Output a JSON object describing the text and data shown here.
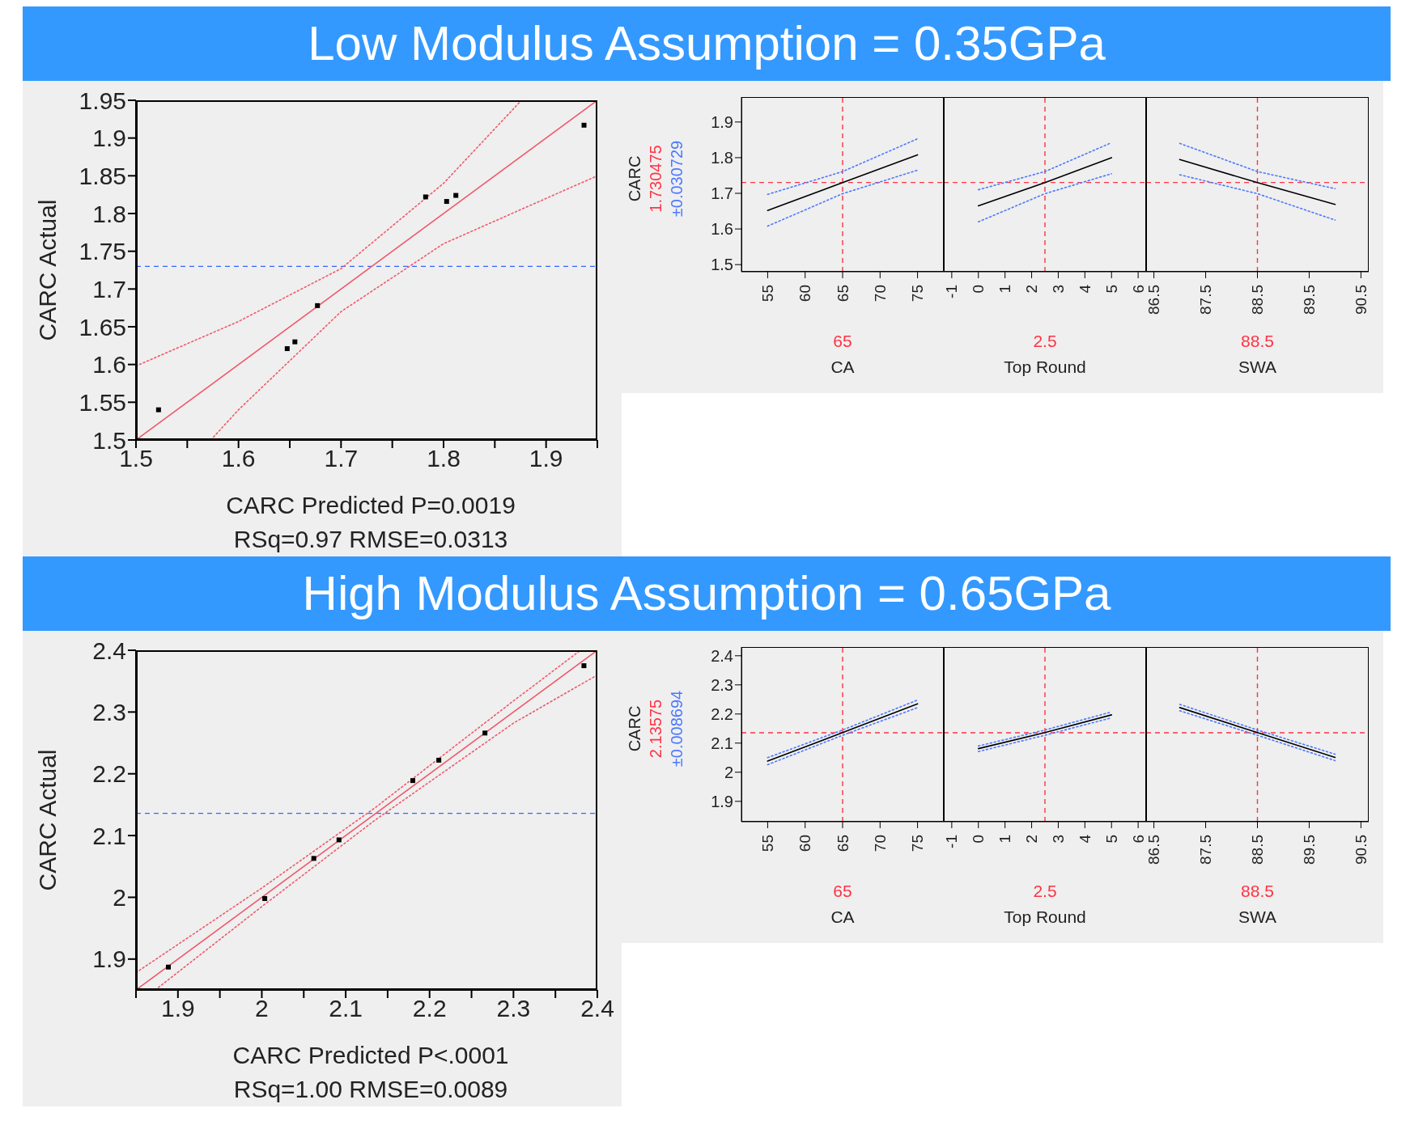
{
  "chart_data": [
    {
      "type": "scatter",
      "title": "Low Modulus Assumption = 0.35GPa",
      "xlabel": "CARC Predicted P=0.0019",
      "ylabel": "CARC Actual",
      "annotations": [
        "RSq=0.97 RMSE=0.0313"
      ],
      "xlim": [
        1.5,
        1.95
      ],
      "xticks": [
        1.5,
        {
          "value": 1.55,
          "label": null
        },
        1.6,
        {
          "value": 1.65,
          "label": null
        },
        1.7,
        {
          "value": 1.75,
          "label": null
        },
        1.8,
        {
          "value": 1.85,
          "label": null
        },
        1.9,
        {
          "value": 1.95,
          "label": null
        }
      ],
      "ylim": [
        1.5,
        1.95
      ],
      "yticks": [
        1.5,
        1.55,
        1.6,
        1.65,
        1.7,
        1.75,
        1.8,
        1.85,
        1.9,
        1.95
      ],
      "grid": false,
      "legend": false,
      "series": [
        {
          "type": "scatter",
          "marker": "square",
          "color": "#000000",
          "x": [
            1.522,
            1.6475,
            1.655,
            1.677,
            1.7825,
            1.803,
            1.812,
            1.937
          ],
          "values": [
            1.54,
            1.621,
            1.63,
            1.678,
            1.822,
            1.816,
            1.824,
            1.917
          ]
        },
        {
          "type": "line",
          "line_style": "solid",
          "color": "#f05a6a",
          "x": [
            1.5,
            1.95
          ],
          "values": [
            1.5,
            1.95
          ]
        },
        {
          "type": "line",
          "line_style": "dotted",
          "color": "#f05a6a",
          "x": [
            1.5,
            1.6,
            1.7,
            1.8,
            1.876
          ],
          "values": [
            1.598,
            1.657,
            1.727,
            1.84,
            1.95
          ]
        },
        {
          "type": "line",
          "line_style": "dotted",
          "color": "#f05a6a",
          "x": [
            1.573,
            1.6,
            1.7,
            1.8,
            1.9,
            1.95
          ],
          "values": [
            1.5,
            1.54,
            1.67,
            1.76,
            1.82,
            1.85
          ]
        }
      ],
      "ref_lines": [
        {
          "axis": "y",
          "value": 1.73,
          "color": "#3366ff",
          "line_style": "dashed"
        }
      ]
    },
    {
      "type": "line",
      "xlabel": "CA",
      "ylabel": "CARC",
      "annotations": [
        "1.730475",
        "±0.030729"
      ],
      "xlim": [
        51.5,
        78.5
      ],
      "xticks": [
        55,
        60,
        65,
        70,
        75
      ],
      "ylim": [
        1.48,
        1.97
      ],
      "yticks": [
        1.5,
        1.6,
        1.7,
        1.8,
        1.9
      ],
      "grid": false,
      "legend": false,
      "series": [
        {
          "line_style": "solid",
          "color": "#000000",
          "x": [
            55,
            65,
            75
          ],
          "values": [
            1.652,
            1.73,
            1.808
          ]
        },
        {
          "line_style": "dotted",
          "color": "#4d79ff",
          "x": [
            55,
            65,
            75
          ],
          "values": [
            1.697,
            1.761,
            1.853
          ]
        },
        {
          "line_style": "dotted",
          "color": "#4d79ff",
          "x": [
            55,
            65,
            75
          ],
          "values": [
            1.608,
            1.699,
            1.765
          ]
        }
      ],
      "ref_lines": [
        {
          "axis": "x",
          "value": 65,
          "label": "65",
          "color": "#ff3344",
          "line_style": "dashed"
        },
        {
          "axis": "y",
          "value": 1.730475,
          "color": "#ff3344",
          "line_style": "dashed"
        }
      ]
    },
    {
      "type": "line",
      "xlabel": "Top Round",
      "tick_labels": "x",
      "xlim": [
        -1.3,
        6.3
      ],
      "xticks": [
        -1,
        0,
        1,
        2,
        3,
        4,
        5,
        6
      ],
      "ylim": [
        1.48,
        1.97
      ],
      "grid": false,
      "legend": false,
      "series": [
        {
          "line_style": "solid",
          "color": "#000000",
          "x": [
            0,
            2.5,
            5
          ],
          "values": [
            1.665,
            1.73,
            1.8
          ]
        },
        {
          "line_style": "dotted",
          "color": "#4d79ff",
          "x": [
            0,
            2.5,
            5
          ],
          "values": [
            1.71,
            1.761,
            1.842
          ]
        },
        {
          "line_style": "dotted",
          "color": "#4d79ff",
          "x": [
            0,
            2.5,
            5
          ],
          "values": [
            1.62,
            1.699,
            1.755
          ]
        }
      ],
      "ref_lines": [
        {
          "axis": "x",
          "value": 2.5,
          "label": "2.5",
          "color": "#ff3344",
          "line_style": "dashed"
        },
        {
          "axis": "y",
          "value": 1.730475,
          "color": "#ff3344",
          "line_style": "dashed"
        }
      ]
    },
    {
      "type": "line",
      "xlabel": "SWA",
      "tick_labels": "x",
      "xlim": [
        86.35,
        90.65
      ],
      "xticks": [
        86.5,
        87.5,
        88.5,
        89.5,
        90.5
      ],
      "ylim": [
        1.48,
        1.97
      ],
      "grid": false,
      "legend": false,
      "series": [
        {
          "line_style": "solid",
          "color": "#000000",
          "x": [
            87,
            88.5,
            90
          ],
          "values": [
            1.795,
            1.73,
            1.669
          ]
        },
        {
          "line_style": "dotted",
          "color": "#4d79ff",
          "x": [
            87,
            88.5,
            90
          ],
          "values": [
            1.84,
            1.761,
            1.713
          ]
        },
        {
          "line_style": "dotted",
          "color": "#4d79ff",
          "x": [
            87,
            88.5,
            90
          ],
          "values": [
            1.752,
            1.699,
            1.625
          ]
        }
      ],
      "ref_lines": [
        {
          "axis": "x",
          "value": 88.5,
          "label": "88.5",
          "color": "#ff3344",
          "line_style": "dashed"
        },
        {
          "axis": "y",
          "value": 1.730475,
          "color": "#ff3344",
          "line_style": "dashed"
        }
      ]
    },
    {
      "type": "scatter",
      "title": "High Modulus Assumption = 0.65GPa",
      "xlabel": "CARC Predicted P<.0001",
      "ylabel": "CARC Actual",
      "annotations": [
        "RSq=1.00 RMSE=0.0089"
      ],
      "xlim": [
        1.85,
        2.4
      ],
      "xticks": [
        {
          "value": 1.85,
          "label": null
        },
        1.9,
        {
          "value": 1.95,
          "label": null
        },
        2,
        {
          "value": 2.05,
          "label": null
        },
        2.1,
        {
          "value": 2.15,
          "label": null
        },
        2.2,
        {
          "value": 2.25,
          "label": null
        },
        2.3,
        {
          "value": 2.35,
          "label": null
        },
        2.4
      ],
      "ylim": [
        1.85,
        2.4
      ],
      "yticks": [
        1.9,
        2,
        2.1,
        2.2,
        2.3,
        2.4
      ],
      "grid": false,
      "legend": false,
      "series": [
        {
          "type": "scatter",
          "marker": "square",
          "color": "#000000",
          "x": [
            1.8886,
            2.0035,
            2.062,
            2.092,
            2.18,
            2.211,
            2.266,
            2.384
          ],
          "values": [
            1.887,
            1.998,
            2.063,
            2.093,
            2.189,
            2.222,
            2.266,
            2.375
          ]
        },
        {
          "type": "line",
          "line_style": "solid",
          "color": "#f05a6a",
          "x": [
            1.85,
            2.4
          ],
          "values": [
            1.85,
            2.4
          ]
        },
        {
          "type": "line",
          "line_style": "dotted",
          "color": "#f05a6a",
          "x": [
            1.85,
            2.0,
            2.135,
            2.3,
            2.38
          ],
          "values": [
            1.878,
            2.015,
            2.145,
            2.318,
            2.4
          ]
        },
        {
          "type": "line",
          "line_style": "dotted",
          "color": "#f05a6a",
          "x": [
            1.873,
            2.0,
            2.135,
            2.3,
            2.4
          ],
          "values": [
            1.85,
            1.985,
            2.125,
            2.282,
            2.36
          ]
        }
      ],
      "ref_lines": [
        {
          "axis": "y",
          "value": 2.136,
          "color": "#3366ff",
          "line_style": "dashed"
        }
      ]
    },
    {
      "type": "line",
      "xlabel": "CA",
      "ylabel": "CARC",
      "annotations": [
        "2.13575",
        "±0.008694"
      ],
      "xlim": [
        51.5,
        78.5
      ],
      "xticks": [
        55,
        60,
        65,
        70,
        75
      ],
      "ylim": [
        1.83,
        2.43
      ],
      "yticks": [
        1.9,
        2,
        2.1,
        2.2,
        2.3,
        2.4
      ],
      "grid": false,
      "legend": false,
      "series": [
        {
          "line_style": "solid",
          "color": "#000000",
          "x": [
            55,
            65,
            75
          ],
          "values": [
            2.038,
            2.136,
            2.235
          ]
        },
        {
          "line_style": "dotted",
          "color": "#4d79ff",
          "x": [
            55,
            65,
            75
          ],
          "values": [
            2.05,
            2.145,
            2.248
          ]
        },
        {
          "line_style": "dotted",
          "color": "#4d79ff",
          "x": [
            55,
            65,
            75
          ],
          "values": [
            2.026,
            2.127,
            2.222
          ]
        }
      ],
      "ref_lines": [
        {
          "axis": "x",
          "value": 65,
          "label": "65",
          "color": "#ff3344",
          "line_style": "dashed"
        },
        {
          "axis": "y",
          "value": 2.13575,
          "color": "#ff3344",
          "line_style": "dashed"
        }
      ]
    },
    {
      "type": "line",
      "xlabel": "Top Round",
      "tick_labels": "x",
      "xlim": [
        -1.3,
        6.3
      ],
      "xticks": [
        -1,
        0,
        1,
        2,
        3,
        4,
        5,
        6
      ],
      "ylim": [
        1.83,
        2.43
      ],
      "grid": false,
      "legend": false,
      "series": [
        {
          "line_style": "solid",
          "color": "#000000",
          "x": [
            0,
            2.5,
            5
          ],
          "values": [
            2.081,
            2.136,
            2.197
          ]
        },
        {
          "line_style": "dotted",
          "color": "#4d79ff",
          "x": [
            0,
            2.5,
            5
          ],
          "values": [
            2.09,
            2.145,
            2.207
          ]
        },
        {
          "line_style": "dotted",
          "color": "#4d79ff",
          "x": [
            0,
            2.5,
            5
          ],
          "values": [
            2.071,
            2.127,
            2.187
          ]
        }
      ],
      "ref_lines": [
        {
          "axis": "x",
          "value": 2.5,
          "label": "2.5",
          "color": "#ff3344",
          "line_style": "dashed"
        },
        {
          "axis": "y",
          "value": 2.13575,
          "color": "#ff3344",
          "line_style": "dashed"
        }
      ]
    },
    {
      "type": "line",
      "xlabel": "SWA",
      "tick_labels": "x",
      "xlim": [
        86.35,
        90.65
      ],
      "xticks": [
        86.5,
        87.5,
        88.5,
        89.5,
        90.5
      ],
      "ylim": [
        1.83,
        2.43
      ],
      "grid": false,
      "legend": false,
      "series": [
        {
          "line_style": "solid",
          "color": "#000000",
          "x": [
            87,
            88.5,
            90
          ],
          "values": [
            2.222,
            2.136,
            2.051
          ]
        },
        {
          "line_style": "dotted",
          "color": "#4d79ff",
          "x": [
            87,
            88.5,
            90
          ],
          "values": [
            2.233,
            2.145,
            2.062
          ]
        },
        {
          "line_style": "dotted",
          "color": "#4d79ff",
          "x": [
            87,
            88.5,
            90
          ],
          "values": [
            2.211,
            2.127,
            2.04
          ]
        }
      ],
      "ref_lines": [
        {
          "axis": "x",
          "value": 88.5,
          "label": "88.5",
          "color": "#ff3344",
          "line_style": "dashed"
        },
        {
          "axis": "y",
          "value": 2.13575,
          "color": "#ff3344",
          "line_style": "dashed"
        }
      ]
    }
  ]
}
